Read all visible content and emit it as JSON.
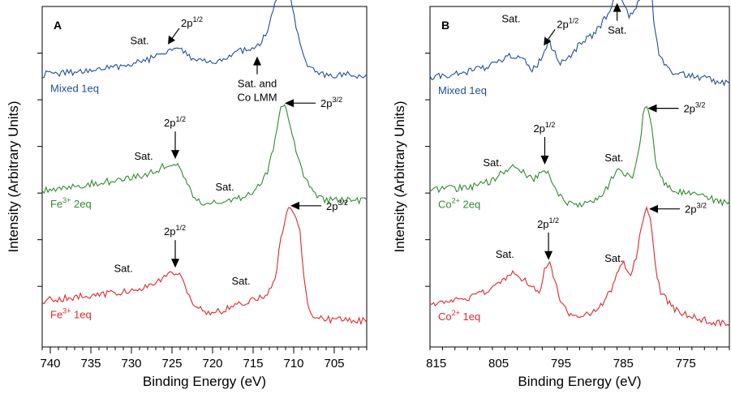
{
  "chart_data": [
    {
      "panel": "A",
      "type": "line",
      "xlabel": "Binding Energy (eV)",
      "ylabel": "Intensity (Arbitrary Units)",
      "xlim": [
        741,
        701
      ],
      "xticks": [
        740,
        735,
        730,
        725,
        720,
        715,
        710,
        705
      ],
      "series": [
        {
          "name": "Mixed 1eq",
          "name_main": "Mixed",
          "name_sup": "",
          "name_tail": " 1eq",
          "color": "#1f4e9c",
          "level": 0.8,
          "x": [
            741,
            738,
            735,
            732,
            729.5,
            727,
            725.5,
            724.5,
            723.5,
            722,
            720.5,
            719,
            717.5,
            716,
            714.5,
            713.2,
            712.2,
            711.3,
            710.6,
            710,
            709.2,
            708.3,
            707.2,
            706,
            704.5,
            703,
            701
          ],
          "y": [
            0.0,
            0.02,
            0.04,
            0.08,
            0.12,
            0.18,
            0.25,
            0.3,
            0.24,
            0.14,
            0.12,
            0.15,
            0.22,
            0.25,
            0.27,
            0.45,
            0.75,
            1.0,
            0.88,
            0.6,
            0.28,
            0.08,
            0.02,
            0.0,
            -0.01,
            0.0,
            -0.01
          ]
        },
        {
          "name": "Fe3+ 2eq",
          "name_main": "Fe",
          "name_sup": "3+",
          "name_tail": " 2eq",
          "color": "#2e8b2e",
          "level": 0.46,
          "x": [
            741,
            738,
            735,
            732,
            729.5,
            727,
            725.5,
            724.8,
            724,
            723,
            722,
            720.5,
            719,
            717.5,
            716,
            714.5,
            713.2,
            712.2,
            711.5,
            710.8,
            710,
            709,
            708,
            707,
            705.5,
            703,
            701
          ],
          "y": [
            0.0,
            0.04,
            0.07,
            0.1,
            0.14,
            0.2,
            0.27,
            0.29,
            0.22,
            0.05,
            -0.1,
            -0.14,
            -0.13,
            -0.1,
            -0.08,
            0.02,
            0.2,
            0.55,
            0.88,
            0.82,
            0.5,
            0.2,
            0.02,
            -0.08,
            -0.1,
            -0.1,
            -0.11
          ]
        },
        {
          "name": "Fe3+ 1eq",
          "name_main": "Fe",
          "name_sup": "3+",
          "name_tail": " 1eq",
          "color": "#e3262a",
          "level": 0.13,
          "x": [
            741,
            738,
            735,
            732,
            729.5,
            727,
            725.5,
            724.8,
            724,
            723,
            722,
            720.5,
            719,
            717.5,
            716,
            714.5,
            713.2,
            712.2,
            711.5,
            710.8,
            710,
            709.3,
            708.8,
            708.2,
            707.5,
            706,
            703,
            701
          ],
          "y": [
            0.02,
            0.05,
            0.08,
            0.1,
            0.14,
            0.2,
            0.28,
            0.32,
            0.28,
            0.08,
            -0.05,
            -0.1,
            -0.09,
            -0.04,
            0.0,
            0.04,
            0.1,
            0.3,
            0.7,
            0.98,
            0.95,
            0.8,
            0.3,
            -0.05,
            -0.14,
            -0.17,
            -0.18,
            -0.19
          ]
        }
      ],
      "annotations": [
        {
          "series": 0,
          "kind": "label",
          "text": "Sat.",
          "x": 729,
          "dy": 0.18
        },
        {
          "series": 0,
          "kind": "arrow",
          "text": "2p",
          "sup": "1/2",
          "x": 725.3,
          "from": "upper-right"
        },
        {
          "series": 0,
          "kind": "arrow",
          "text": "2p",
          "sup": "3/2",
          "x": 711.3,
          "from": "right"
        },
        {
          "series": 0,
          "kind": "arrow-up",
          "text": "Sat. and",
          "text2": "Co LMM",
          "x": 714.5
        },
        {
          "series": 1,
          "kind": "label",
          "text": "Sat.",
          "x": 728.5,
          "dy": 0.15
        },
        {
          "series": 1,
          "kind": "arrow",
          "text": "2p",
          "sup": "1/2",
          "x": 724.6,
          "from": "top"
        },
        {
          "series": 1,
          "kind": "label",
          "text": "Sat.",
          "x": 718.5,
          "dy": 0.12
        },
        {
          "series": 1,
          "kind": "arrow",
          "text": "2p",
          "sup": "3/2",
          "x": 711.5,
          "from": "right"
        },
        {
          "series": 2,
          "kind": "label",
          "text": "Sat.",
          "x": 731,
          "dy": 0.2
        },
        {
          "series": 2,
          "kind": "arrow",
          "text": "2p",
          "sup": "1/2",
          "x": 724.6,
          "from": "top"
        },
        {
          "series": 2,
          "kind": "label",
          "text": "Sat.",
          "x": 716.5,
          "dy": 0.2
        },
        {
          "series": 2,
          "kind": "arrow",
          "text": "2p",
          "sup": "3/2",
          "x": 710.8,
          "from": "right"
        }
      ]
    },
    {
      "panel": "B",
      "type": "line",
      "xlabel": "Binding Energy (eV)",
      "ylabel": "Intensity (Arbitrary Units)",
      "xlim": [
        816,
        768
      ],
      "xticks": [
        815,
        805,
        795,
        785,
        775
      ],
      "series": [
        {
          "name": "Mixed 1eq",
          "name_main": "Mixed",
          "name_sup": "",
          "name_tail": " 1eq",
          "color": "#1f4e9c",
          "level": 0.8,
          "x": [
            816,
            812,
            809,
            806,
            803.5,
            801,
            799.5,
            797.8,
            797,
            796,
            795,
            793.5,
            792,
            790,
            788.5,
            787,
            786,
            785,
            784,
            783,
            782,
            781.2,
            780.5,
            780,
            779.3,
            778.5,
            777,
            775,
            772,
            769,
            768
          ],
          "y": [
            -0.02,
            0.0,
            0.04,
            0.1,
            0.2,
            0.14,
            0.05,
            0.18,
            0.36,
            0.22,
            0.12,
            0.18,
            0.32,
            0.4,
            0.52,
            0.68,
            0.82,
            0.75,
            0.6,
            0.68,
            0.82,
            1.0,
            0.9,
            0.45,
            0.22,
            0.1,
            0.03,
            0.0,
            -0.04,
            -0.08,
            -0.08
          ]
        },
        {
          "name": "Co2+ 2eq",
          "name_main": "Co",
          "name_sup": "2+",
          "name_tail": " 2eq",
          "color": "#2e8b2e",
          "level": 0.46,
          "x": [
            816,
            812,
            809,
            806,
            804,
            803,
            801.5,
            799.5,
            798.3,
            797.5,
            796.5,
            795,
            793.5,
            792,
            790,
            788,
            787,
            786,
            785,
            783.5,
            782.5,
            781.8,
            781.2,
            780.5,
            779.8,
            779,
            778,
            776,
            773,
            770,
            768
          ],
          "y": [
            0.0,
            0.02,
            0.04,
            0.1,
            0.2,
            0.24,
            0.22,
            0.1,
            0.18,
            0.22,
            0.1,
            -0.08,
            -0.14,
            -0.15,
            -0.12,
            -0.02,
            0.1,
            0.2,
            0.18,
            0.1,
            0.4,
            0.8,
            0.88,
            0.7,
            0.3,
            0.12,
            0.04,
            -0.02,
            -0.06,
            -0.1,
            -0.14
          ]
        },
        {
          "name": "Co2+ 1eq",
          "name_main": "Co",
          "name_sup": "2+",
          "name_tail": " 1eq",
          "color": "#e3262a",
          "level": 0.13,
          "x": [
            816,
            812,
            809,
            806,
            804,
            802.5,
            800.5,
            798.5,
            797.5,
            796.8,
            796,
            795,
            793.5,
            792,
            790,
            788.5,
            787,
            786,
            785,
            783.8,
            782.8,
            782,
            781.2,
            780.5,
            779.8,
            779,
            777,
            774,
            771,
            768
          ],
          "y": [
            0.0,
            0.02,
            0.06,
            0.14,
            0.26,
            0.3,
            0.22,
            0.1,
            0.36,
            0.4,
            0.2,
            0.02,
            -0.14,
            -0.15,
            -0.1,
            -0.02,
            0.12,
            0.32,
            0.4,
            0.28,
            0.5,
            0.85,
            0.98,
            0.8,
            0.35,
            0.1,
            -0.06,
            -0.14,
            -0.2,
            -0.22
          ]
        }
      ],
      "annotations": [
        {
          "series": 0,
          "kind": "label",
          "text": "Sat.",
          "x": 803,
          "dy": 0.35
        },
        {
          "series": 0,
          "kind": "arrow",
          "text": "2p",
          "sup": "1/2",
          "x": 797.5,
          "from": "upper-right"
        },
        {
          "series": 0,
          "kind": "arrow-up",
          "text": "Sat.",
          "text2": "",
          "x": 786
        },
        {
          "series": 0,
          "kind": "arrow",
          "text": "2p",
          "sup": "3/2",
          "x": 781.2,
          "from": "right"
        },
        {
          "series": 1,
          "kind": "label",
          "text": "Sat.",
          "x": 806,
          "dy": 0.15
        },
        {
          "series": 1,
          "kind": "arrow",
          "text": "2p",
          "sup": "1/2",
          "x": 797.6,
          "from": "top"
        },
        {
          "series": 1,
          "kind": "label",
          "text": "Sat.",
          "x": 786.5,
          "dy": 0.15
        },
        {
          "series": 1,
          "kind": "arrow",
          "text": "2p",
          "sup": "3/2",
          "x": 781.6,
          "from": "right"
        },
        {
          "series": 2,
          "kind": "label",
          "text": "Sat.",
          "x": 804,
          "dy": 0.2
        },
        {
          "series": 2,
          "kind": "arrow",
          "text": "2p",
          "sup": "1/2",
          "x": 797,
          "from": "top"
        },
        {
          "series": 2,
          "kind": "label",
          "text": "Sat.",
          "x": 786.5,
          "dy": 0.2
        },
        {
          "series": 2,
          "kind": "arrow",
          "text": "2p",
          "sup": "3/2",
          "x": 781.4,
          "from": "right"
        }
      ]
    }
  ]
}
